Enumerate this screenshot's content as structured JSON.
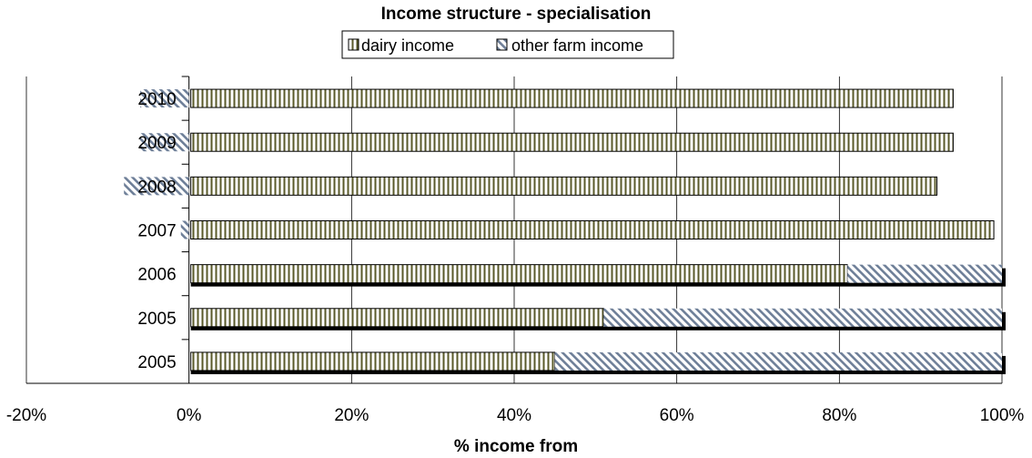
{
  "chart_data": {
    "type": "bar",
    "orientation": "horizontal",
    "stacked": true,
    "title": "Income structure - specialisation",
    "xlabel": "% income from",
    "ylabel": "",
    "xlim": [
      -20,
      100
    ],
    "x_ticks": [
      "-20%",
      "0%",
      "20%",
      "40%",
      "60%",
      "80%",
      "100%"
    ],
    "x_tick_values": [
      -20,
      0,
      20,
      40,
      60,
      80,
      100
    ],
    "grid": true,
    "legend_position": "top",
    "categories": [
      "2005",
      "2005",
      "2006",
      "2007",
      "2008",
      "2009",
      "2010"
    ],
    "series": [
      {
        "name": "dairy income",
        "pattern": "vertical-stripes",
        "color": "#5a5a2a",
        "values": [
          45,
          51,
          81,
          99,
          92,
          94,
          94
        ]
      },
      {
        "name": "other farm income",
        "pattern": "diagonal-hatch",
        "color": "#6e7f98",
        "values": [
          55,
          49,
          19,
          -1,
          -8,
          -6,
          -6
        ]
      }
    ]
  }
}
